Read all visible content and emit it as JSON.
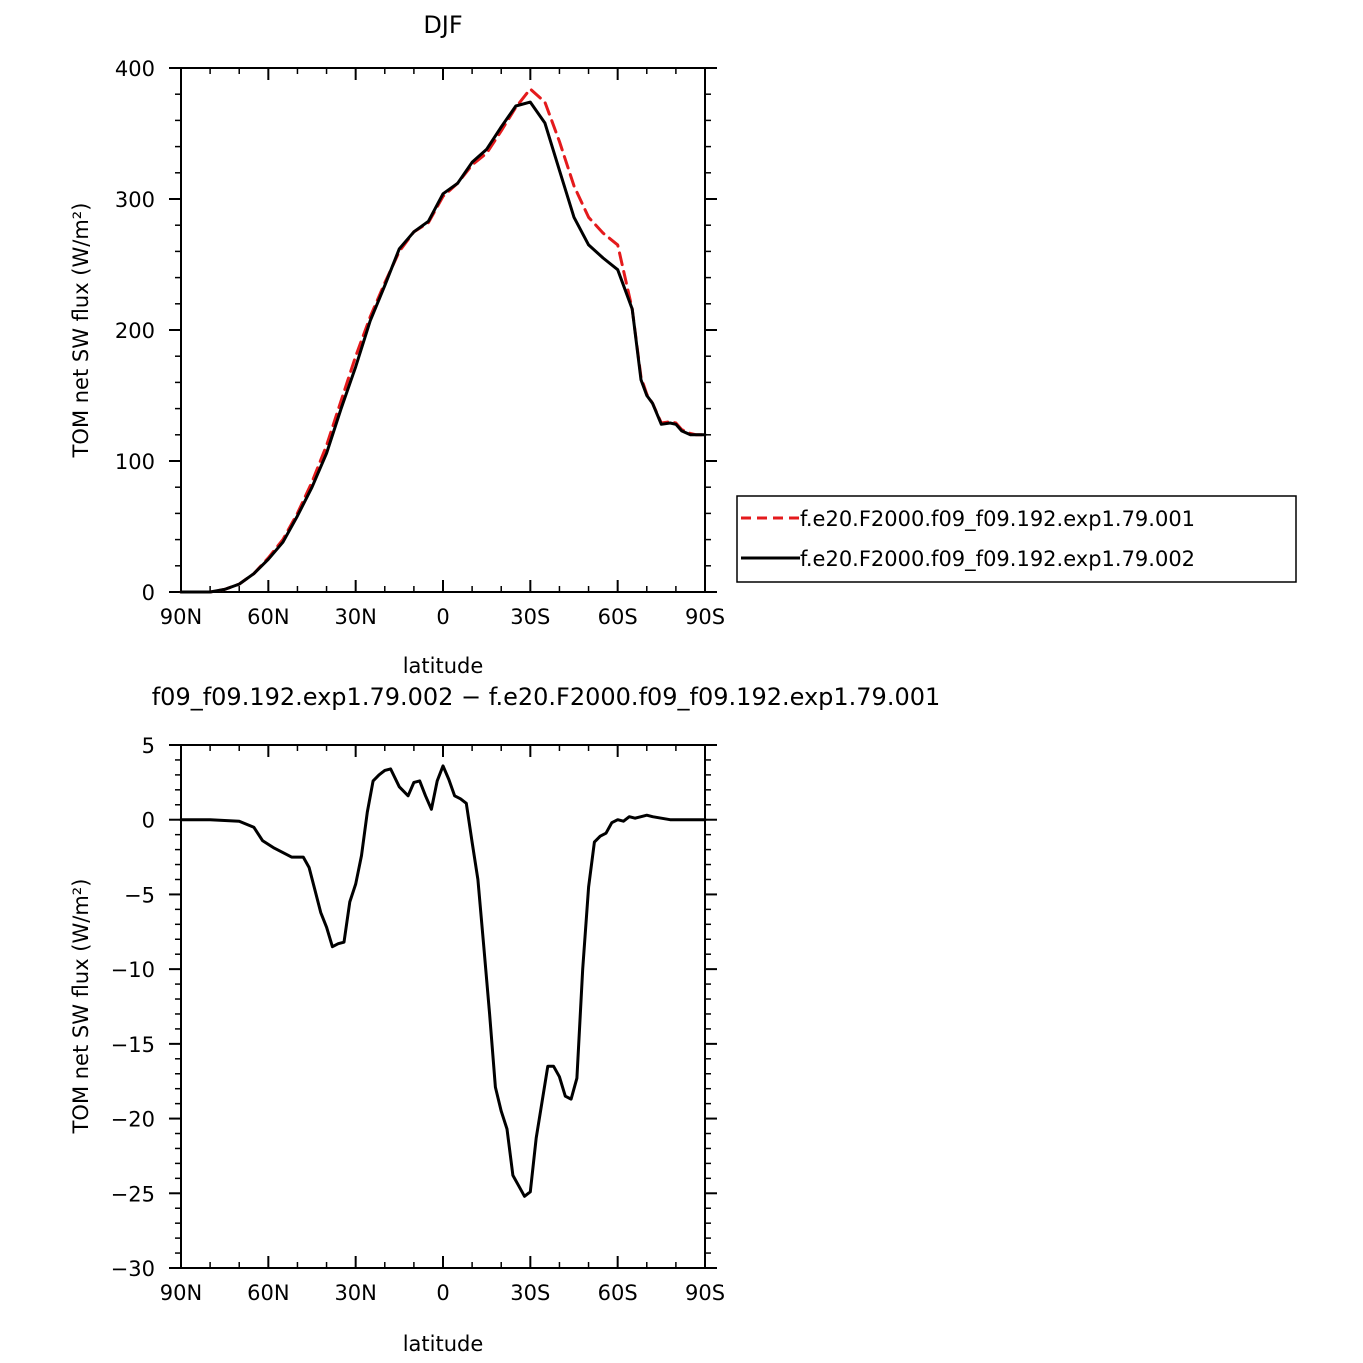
{
  "chart_data": [
    {
      "type": "line",
      "title": "DJF",
      "xlabel": "latitude",
      "ylabel": "TOM net SW flux (W/m²)",
      "xlim": [
        90,
        -90
      ],
      "ylim": [
        0,
        400
      ],
      "xticks": [
        90,
        60,
        30,
        0,
        -30,
        -60,
        -90
      ],
      "xtick_labels": [
        "90N",
        "60N",
        "30N",
        "0",
        "30S",
        "60S",
        "90S"
      ],
      "yticks": [
        0,
        100,
        200,
        300,
        400
      ],
      "ytick_labels": [
        "0",
        "100",
        "200",
        "300",
        "400"
      ],
      "legend_position": "right",
      "series": [
        {
          "name": "f.e20.F2000.f09_f09.192.exp1.79.001",
          "color": "#e41a1c",
          "style": "dashed",
          "x": [
            90,
            80,
            75,
            70,
            65,
            60,
            55,
            50,
            45,
            40,
            35,
            30,
            25,
            20,
            15,
            10,
            5,
            0,
            -5,
            -10,
            -15,
            -20,
            -25,
            -30,
            -35,
            -40,
            -45,
            -50,
            -55,
            -60,
            -65,
            -68,
            -70,
            -72,
            -75,
            -78,
            -80,
            -82,
            -85,
            -87,
            -90
          ],
          "y": [
            0,
            0,
            2,
            6,
            14,
            26,
            40,
            60,
            84,
            112,
            146,
            180,
            210,
            236,
            260,
            275,
            282,
            302,
            312,
            326,
            335,
            352,
            370,
            384,
            374,
            344,
            310,
            286,
            274,
            265,
            216,
            164,
            151,
            144,
            129,
            130,
            129,
            124,
            121,
            120,
            120
          ]
        },
        {
          "name": "f.e20.F2000.f09_f09.192.exp1.79.002",
          "color": "#000000",
          "style": "solid",
          "x": [
            90,
            80,
            75,
            70,
            65,
            60,
            55,
            50,
            45,
            40,
            35,
            30,
            25,
            20,
            15,
            10,
            5,
            0,
            -5,
            -10,
            -15,
            -20,
            -25,
            -30,
            -35,
            -40,
            -45,
            -50,
            -55,
            -60,
            -65,
            -68,
            -70,
            -72,
            -75,
            -78,
            -80,
            -82,
            -85,
            -87,
            -90
          ],
          "y": [
            0,
            0,
            2,
            6,
            14,
            25,
            38,
            58,
            80,
            106,
            140,
            172,
            207,
            234,
            262,
            275,
            283,
            304,
            312,
            328,
            338,
            355,
            371,
            374,
            358,
            322,
            286,
            265,
            255,
            246,
            216,
            162,
            150,
            144,
            128,
            129,
            128,
            123,
            120,
            120,
            120
          ]
        }
      ]
    },
    {
      "type": "line",
      "title": "f09_f09.192.exp1.79.002 − f.e20.F2000.f09_f09.192.exp1.79.001",
      "xlabel": "latitude",
      "ylabel": "TOM net SW flux (W/m²)",
      "xlim": [
        90,
        -90
      ],
      "ylim": [
        -30,
        5
      ],
      "xticks": [
        90,
        60,
        30,
        0,
        -30,
        -60,
        -90
      ],
      "xtick_labels": [
        "90N",
        "60N",
        "30N",
        "0",
        "30S",
        "60S",
        "90S"
      ],
      "yticks": [
        5,
        0,
        -5,
        -10,
        -15,
        -20,
        -25,
        -30
      ],
      "ytick_labels": [
        "5",
        "0",
        "−5",
        "−10",
        "−15",
        "−20",
        "−25",
        "−30"
      ],
      "series": [
        {
          "color": "#000000",
          "style": "solid",
          "x": [
            90,
            80,
            70,
            65,
            62,
            58,
            55,
            52,
            48,
            46,
            44,
            42,
            40,
            38,
            36,
            34,
            32,
            30,
            28,
            26,
            24,
            22,
            20,
            18,
            15,
            12,
            10,
            8,
            6,
            4,
            2,
            0,
            -2,
            -4,
            -6,
            -8,
            -10,
            -12,
            -14,
            -16,
            -18,
            -20,
            -22,
            -24,
            -26,
            -28,
            -30,
            -32,
            -34,
            -36,
            -38,
            -40,
            -42,
            -44,
            -46,
            -48,
            -50,
            -52,
            -54,
            -56,
            -58,
            -60,
            -62,
            -64,
            -66,
            -68,
            -70,
            -72,
            -75,
            -78,
            -80,
            -82,
            -84,
            -86,
            -88,
            -90
          ],
          "y": [
            0,
            0,
            -0.1,
            -0.5,
            -1.4,
            -1.9,
            -2.2,
            -2.5,
            -2.5,
            -3.2,
            -4.7,
            -6.2,
            -7.2,
            -8.5,
            -8.3,
            -8.2,
            -5.5,
            -4.3,
            -2.4,
            0.5,
            2.6,
            3.0,
            3.3,
            3.4,
            2.2,
            1.6,
            2.5,
            2.6,
            1.6,
            0.7,
            2.6,
            3.6,
            2.7,
            1.6,
            1.4,
            1.1,
            -1.5,
            -4.0,
            -8.5,
            -13.0,
            -17.9,
            -19.5,
            -20.7,
            -23.8,
            -24.5,
            -25.2,
            -24.9,
            -21.3,
            -18.9,
            -16.5,
            -16.5,
            -17.2,
            -18.5,
            -18.7,
            -17.3,
            -10.0,
            -4.5,
            -1.5,
            -1.1,
            -0.9,
            -0.2,
            0.0,
            -0.1,
            0.2,
            0.1,
            0.2,
            0.3,
            0.2,
            0.1,
            0.0,
            0.0,
            0.0,
            0.0,
            0.0,
            0.0,
            0.0
          ]
        }
      ]
    }
  ]
}
